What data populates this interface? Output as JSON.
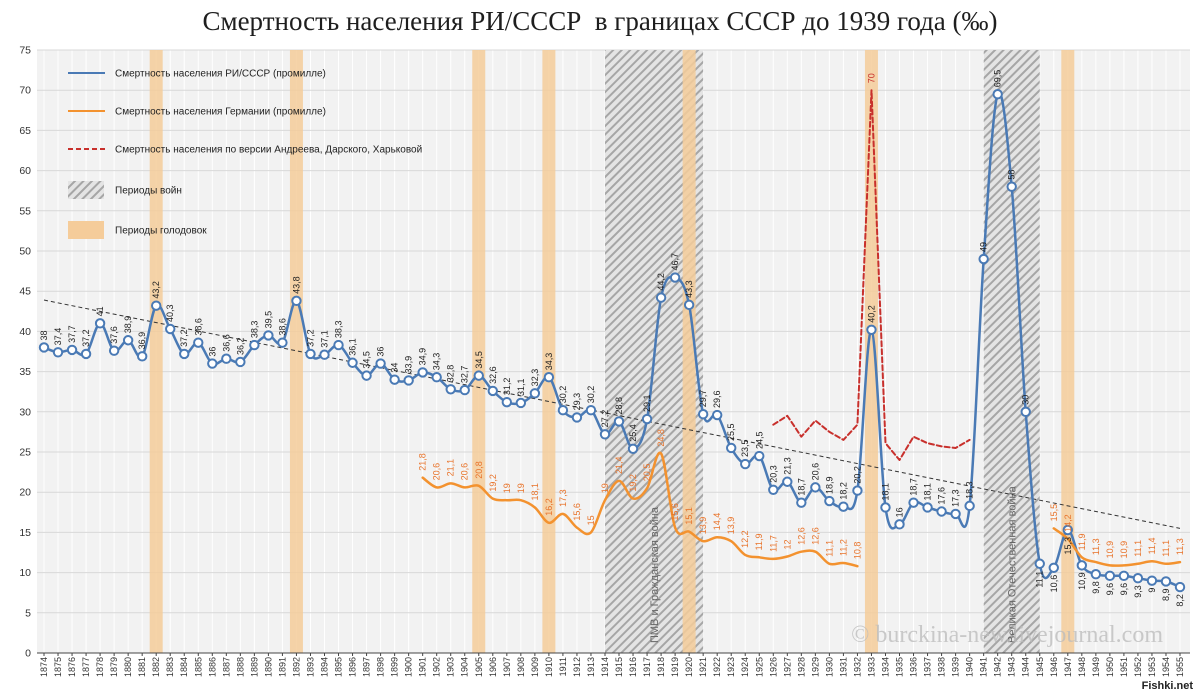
{
  "chart_data": {
    "type": "line",
    "title": "Смертность населения РИ/СССР  в границах СССР до 1939 года (‰)",
    "xlim": [
      1874,
      1955
    ],
    "ylim": [
      0,
      75
    ],
    "yticks": [
      0,
      5,
      10,
      15,
      20,
      25,
      30,
      35,
      40,
      45,
      50,
      55,
      60,
      65,
      70,
      75
    ],
    "grid": true,
    "legend_position": "top-left",
    "decimal_separator": ",",
    "x": [
      1874,
      1875,
      1876,
      1877,
      1878,
      1879,
      1880,
      1881,
      1882,
      1883,
      1884,
      1885,
      1886,
      1887,
      1888,
      1889,
      1890,
      1891,
      1892,
      1893,
      1894,
      1895,
      1896,
      1897,
      1898,
      1899,
      1900,
      1901,
      1902,
      1903,
      1904,
      1905,
      1906,
      1907,
      1908,
      1909,
      1910,
      1911,
      1912,
      1913,
      1914,
      1915,
      1916,
      1917,
      1918,
      1919,
      1920,
      1921,
      1922,
      1923,
      1924,
      1925,
      1926,
      1927,
      1928,
      1929,
      1930,
      1931,
      1932,
      1933,
      1934,
      1935,
      1936,
      1937,
      1938,
      1939,
      1940,
      1941,
      1942,
      1943,
      1944,
      1945,
      1946,
      1947,
      1948,
      1949,
      1950,
      1951,
      1952,
      1953,
      1954,
      1955
    ],
    "series": [
      {
        "name": "Смертность населения РИ/СССР (промилле)",
        "color": "#4a7ab5",
        "line_style": "solid",
        "markers": true,
        "values": [
          38,
          37.4,
          37.7,
          37.2,
          41,
          37.6,
          38.9,
          36.9,
          43.2,
          40.3,
          37.2,
          38.6,
          36,
          36.6,
          36.2,
          38.3,
          39.5,
          38.6,
          43.8,
          37.2,
          37.1,
          38.3,
          36.1,
          34.5,
          36,
          34,
          33.9,
          34.9,
          34.3,
          32.8,
          32.7,
          34.5,
          32.6,
          31.2,
          31.1,
          32.3,
          34.3,
          30.2,
          29.3,
          30.2,
          27.2,
          28.8,
          25.4,
          29.1,
          44.2,
          46.7,
          43.3,
          29.7,
          29.6,
          25.5,
          23.5,
          24.5,
          20.3,
          21.3,
          18.7,
          20.6,
          18.9,
          18.2,
          20.2,
          40.2,
          18.1,
          16,
          18.7,
          18.1,
          17.6,
          17.3,
          18.3,
          49,
          69.5,
          58,
          30,
          11.1,
          10.6,
          15.3,
          10.9,
          9.8,
          9.6,
          9.6,
          9.3,
          9,
          8.9,
          8.2
        ]
      },
      {
        "name": "Смертность населения Германии (промилле)",
        "color": "#f3922f",
        "label_color": "#e8732a",
        "line_style": "solid",
        "markers": false,
        "x": [
          1901,
          1902,
          1903,
          1904,
          1905,
          1906,
          1907,
          1908,
          1909,
          1910,
          1911,
          1912,
          1913,
          1914,
          1915,
          1916,
          1917,
          1918,
          1919,
          1920,
          1921,
          1922,
          1923,
          1924,
          1925,
          1926,
          1927,
          1928,
          1929,
          1930,
          1931,
          1932,
          1946,
          1947,
          1948,
          1949,
          1950,
          1951,
          1952,
          1953,
          1954,
          1955
        ],
        "values": [
          21.8,
          20.6,
          21.1,
          20.6,
          20.8,
          19.2,
          19,
          19,
          18.1,
          16.2,
          17.3,
          15.6,
          15,
          19,
          21.4,
          19.2,
          20.5,
          24.8,
          15.6,
          15.1,
          13.9,
          14.4,
          13.9,
          12.2,
          11.9,
          11.7,
          12,
          12.6,
          12.6,
          11.1,
          11.2,
          10.8,
          15.5,
          14.2,
          11.9,
          11.3,
          10.9,
          10.9,
          11.1,
          11.4,
          11.1,
          11.3
        ]
      },
      {
        "name": "Смертность населения по версии Андреева, Дарского, Харьковой",
        "color": "#c8302c",
        "line_style": "dashed",
        "markers": false,
        "x": [
          1926,
          1927,
          1928,
          1929,
          1930,
          1931,
          1932,
          1933,
          1934,
          1935,
          1936,
          1937,
          1938,
          1939,
          1940
        ],
        "values": [
          28.4,
          29.5,
          26.9,
          28.9,
          27.5,
          26.5,
          28.4,
          70,
          26.1,
          24,
          26.9,
          26.1,
          25.7,
          25.5,
          26.5
        ],
        "labeled_x": [
          1933
        ]
      }
    ],
    "trendline": {
      "color": "#333333",
      "line_style": "dashed",
      "x": [
        1874,
        1955
      ],
      "values": [
        43.9,
        15.5
      ]
    },
    "shaded_periods": {
      "wars": {
        "label": "Периоды войн",
        "ranges": [
          [
            1914,
            1921
          ],
          [
            1941,
            1945
          ]
        ],
        "annotations": [
          "ПМВ и Гражданская война",
          "Великая Отечественная война"
        ]
      },
      "famines": {
        "label": "Периоды голодовок",
        "color": "#f5cc9a",
        "years": [
          1882,
          1892,
          1905,
          1910,
          1920,
          1933,
          1947
        ]
      }
    },
    "watermark": "© burckina-new.livejournal.com"
  },
  "site_badge": "Fishki.net"
}
